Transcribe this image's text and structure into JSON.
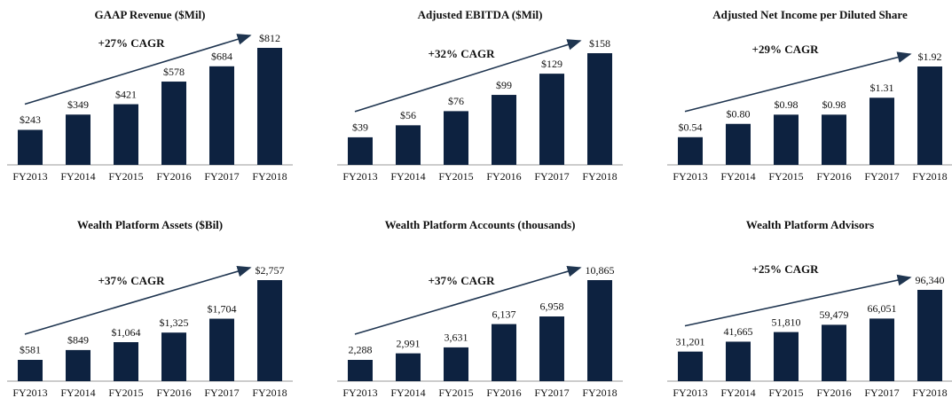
{
  "chart_data": [
    {
      "type": "bar",
      "title": "GAAP  Revenue ($Mil)",
      "annotation": "+27% CAGR",
      "color": "#0d2240",
      "categories": [
        "FY2013",
        "FY2014",
        "FY2015",
        "FY2016",
        "FY2017",
        "FY2018"
      ],
      "values": [
        243,
        349,
        421,
        578,
        684,
        812
      ],
      "value_labels": [
        "$243",
        "$349",
        "$421",
        "$578",
        "$684",
        "$812"
      ]
    },
    {
      "type": "bar",
      "title": "Adjusted EBITDA ($Mil)",
      "annotation": "+32% CAGR",
      "color": "#0d2240",
      "categories": [
        "FY2013",
        "FY2014",
        "FY2015",
        "FY2016",
        "FY2017",
        "FY2018"
      ],
      "values": [
        39,
        56,
        76,
        99,
        129,
        158
      ],
      "value_labels": [
        "$39",
        "$56",
        "$76",
        "$99",
        "$129",
        "$158"
      ]
    },
    {
      "type": "bar",
      "title": "Adjusted Net Income per Diluted Share",
      "annotation": "+29% CAGR",
      "color": "#0d2240",
      "categories": [
        "FY2013",
        "FY2014",
        "FY2015",
        "FY2016",
        "FY2017",
        "FY2018"
      ],
      "values": [
        0.54,
        0.8,
        0.98,
        0.98,
        1.31,
        1.92
      ],
      "value_labels": [
        "$0.54",
        "$0.80",
        "$0.98",
        "$0.98",
        "$1.31",
        "$1.92"
      ]
    },
    {
      "type": "bar",
      "title": "Wealth Platform Assets ($Bil)",
      "annotation": "+37% CAGR",
      "color": "#0d2240",
      "categories": [
        "FY2013",
        "FY2014",
        "FY2015",
        "FY2016",
        "FY2017",
        "FY2018"
      ],
      "values": [
        581,
        849,
        1064,
        1325,
        1704,
        2757
      ],
      "value_labels": [
        "$581",
        "$849",
        "$1,064",
        "$1,325",
        "$1,704",
        "$2,757"
      ]
    },
    {
      "type": "bar",
      "title": "Wealth Platform Accounts (thousands)",
      "annotation": "+37% CAGR",
      "color": "#0d2240",
      "categories": [
        "FY2013",
        "FY2014",
        "FY2015",
        "FY2016",
        "FY2017",
        "FY2018"
      ],
      "values": [
        2288,
        2991,
        3631,
        6137,
        6958,
        10865
      ],
      "value_labels": [
        "2,288",
        "2,991",
        "3,631",
        "6,137",
        "6,958",
        "10,865"
      ]
    },
    {
      "type": "bar",
      "title": "Wealth Platform Advisors",
      "annotation": "+25% CAGR",
      "color": "#0d2240",
      "categories": [
        "FY2013",
        "FY2014",
        "FY2015",
        "FY2016",
        "FY2017",
        "FY2018"
      ],
      "values": [
        31201,
        41665,
        51810,
        59479,
        66051,
        96340
      ],
      "value_labels": [
        "31,201",
        "41,665",
        "51,810",
        "59,479",
        "66,051",
        "96,340"
      ]
    }
  ]
}
